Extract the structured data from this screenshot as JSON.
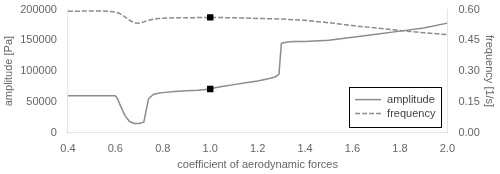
{
  "chart_data": {
    "type": "line",
    "xlabel": "coefficient of aerodynamic forces",
    "ylabel": "amplitude [Pa]",
    "y2label": "frequency [1/s]",
    "xlim": [
      0.4,
      2.0
    ],
    "xticks": [
      0.4,
      0.6,
      0.8,
      {
        "value": 1.0,
        "label": "1.0"
      },
      1.2,
      1.4,
      1.6,
      1.8,
      {
        "value": 2.0,
        "label": "2.0"
      }
    ],
    "ylim": [
      0,
      200000
    ],
    "yticks": [
      0,
      50000,
      100000,
      150000,
      200000
    ],
    "y2lim": [
      0.0,
      0.6
    ],
    "y2ticks": [
      {
        "value": 0.0,
        "label": "0.00"
      },
      {
        "value": 0.15,
        "label": "0.15"
      },
      {
        "value": 0.3,
        "label": "0.30"
      },
      {
        "value": 0.45,
        "label": "0.45"
      },
      {
        "value": 0.6,
        "label": "0.60"
      }
    ],
    "grid": false,
    "legend": "lower right",
    "series": [
      {
        "name": "amplitude",
        "color": "#8c8c8c",
        "line_style": "solid",
        "x": [
          0.4,
          0.5,
          0.6,
          0.61,
          0.62,
          0.64,
          0.66,
          0.68,
          0.7,
          0.72,
          0.74,
          0.76,
          0.78,
          0.8,
          0.85,
          0.9,
          0.95,
          1.0,
          1.02,
          1.05,
          1.1,
          1.15,
          1.2,
          1.25,
          1.27,
          1.28,
          1.29,
          1.3,
          1.31,
          1.32,
          1.35,
          1.4,
          1.5,
          1.6,
          1.7,
          1.8,
          1.9,
          2.0
        ],
        "values": [
          60000,
          60000,
          60000,
          55000,
          45000,
          28000,
          18000,
          15000,
          15000,
          17000,
          55000,
          62000,
          64000,
          65000,
          67000,
          68000,
          69000,
          71000,
          73000,
          75000,
          78000,
          81000,
          84000,
          88000,
          90000,
          92000,
          95000,
          145000,
          146000,
          147000,
          148000,
          148000,
          150000,
          155000,
          160000,
          165000,
          170000,
          178000
        ]
      },
      {
        "name": "frequency",
        "color": "#8c8c8c",
        "line_style": "dashed",
        "axis": "y2",
        "x": [
          0.4,
          0.5,
          0.55,
          0.58,
          0.6,
          0.62,
          0.64,
          0.66,
          0.68,
          0.7,
          0.72,
          0.74,
          0.76,
          0.78,
          0.8,
          0.85,
          0.9,
          0.95,
          1.0,
          1.05,
          1.1,
          1.2,
          1.3,
          1.4,
          1.5,
          1.6,
          1.7,
          1.8,
          1.9,
          2.0
        ],
        "values": [
          0.592,
          0.593,
          0.593,
          0.591,
          0.588,
          0.58,
          0.565,
          0.548,
          0.535,
          0.533,
          0.54,
          0.548,
          0.553,
          0.556,
          0.558,
          0.56,
          0.56,
          0.561,
          0.562,
          0.561,
          0.56,
          0.557,
          0.554,
          0.548,
          0.536,
          0.522,
          0.51,
          0.498,
          0.487,
          0.478
        ]
      },
      {
        "type": "scatter",
        "marker": "square",
        "color": "#000000",
        "x": [
          1.0
        ],
        "values": [
          71000
        ]
      },
      {
        "type": "scatter",
        "marker": "square",
        "color": "#000000",
        "axis": "y2",
        "x": [
          1.0
        ],
        "values": [
          0.562
        ]
      }
    ]
  }
}
